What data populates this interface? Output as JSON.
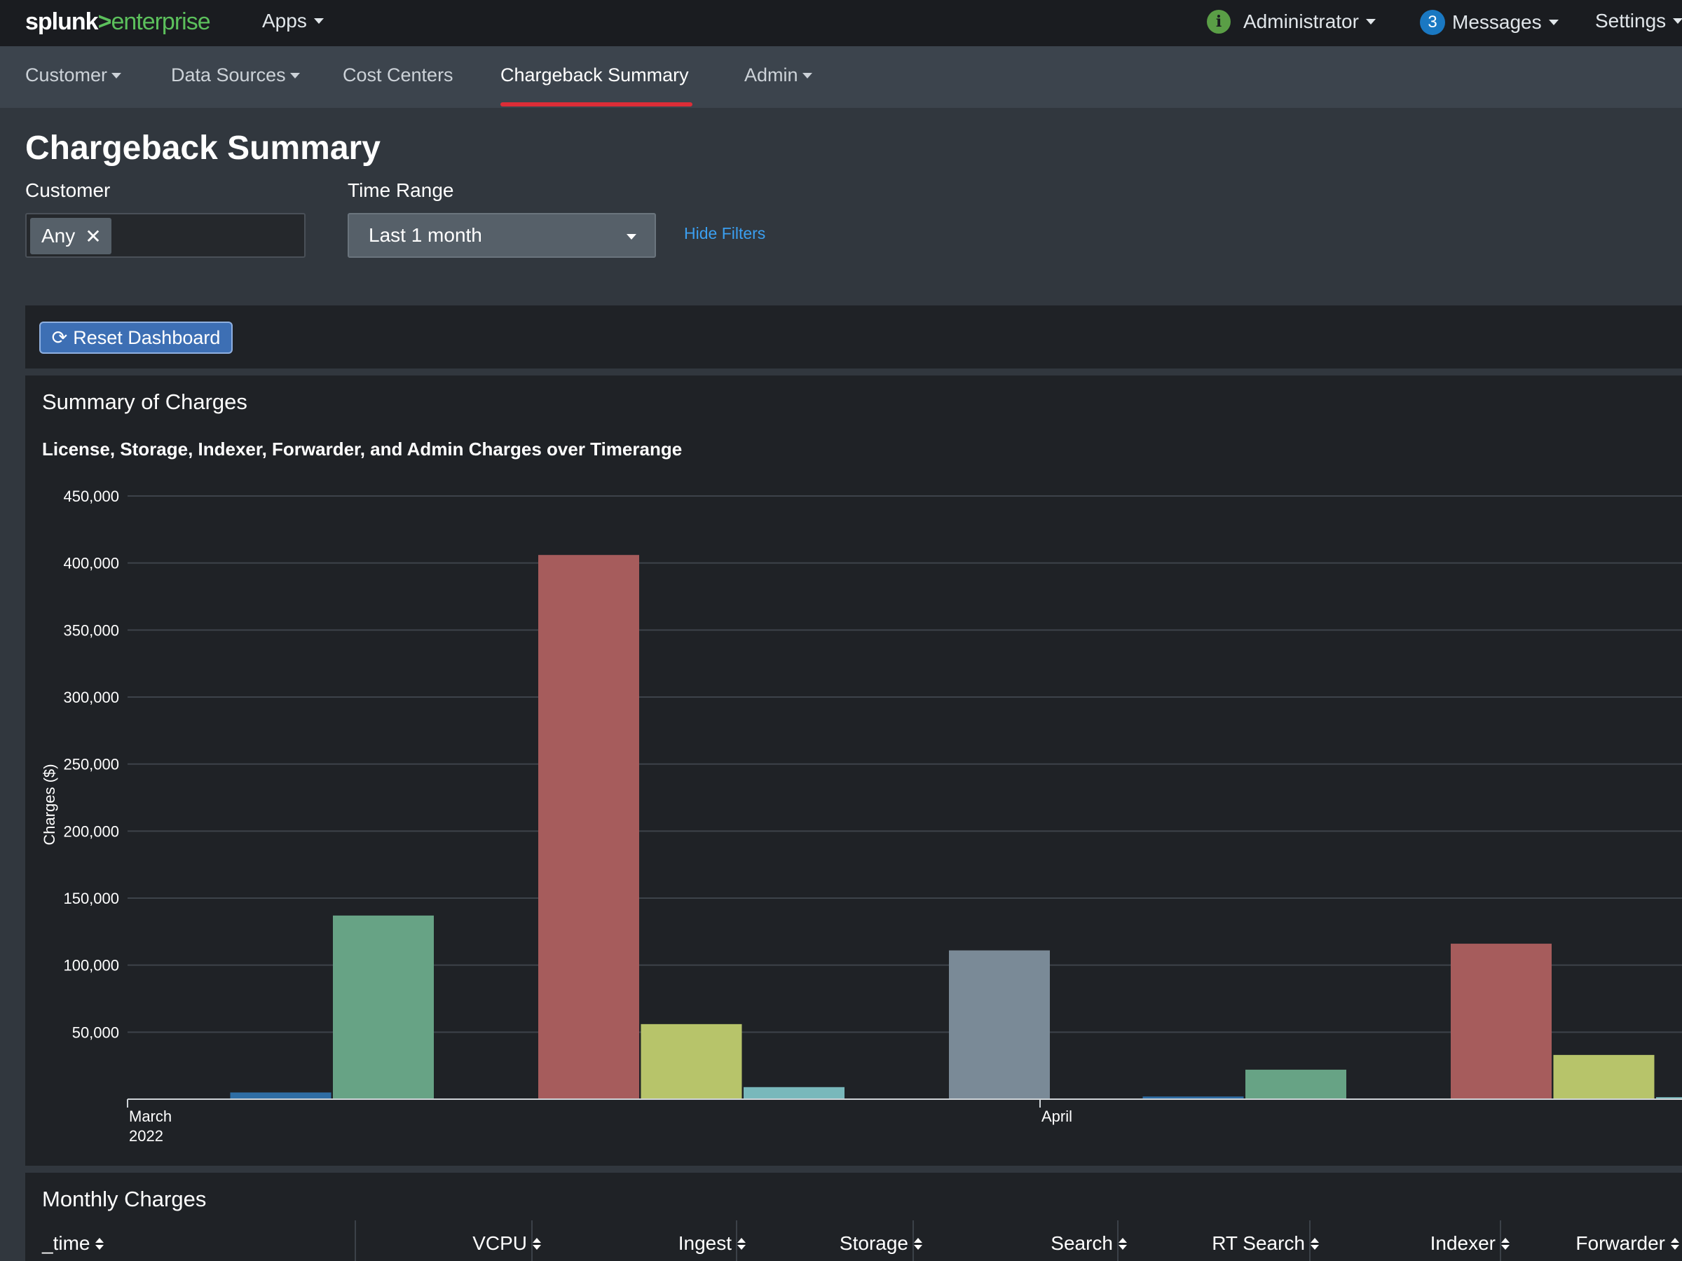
{
  "topbar": {
    "logo_splunk": "splunk",
    "logo_gt": ">",
    "logo_enterprise": "enterprise",
    "apps": "Apps",
    "user": "Administrator",
    "messages_count": "3",
    "messages": "Messages",
    "settings": "Settings"
  },
  "nav": {
    "items": [
      {
        "label": "Customer",
        "dropdown": true
      },
      {
        "label": "Data Sources",
        "dropdown": true
      },
      {
        "label": "Cost Centers",
        "dropdown": false
      },
      {
        "label": "Chargeback Summary",
        "dropdown": false,
        "active": true
      },
      {
        "label": "Admin",
        "dropdown": true
      }
    ]
  },
  "page": {
    "title": "Chargeback Summary"
  },
  "filters": {
    "customer_label": "Customer",
    "customer_chip": "Any",
    "time_label": "Time Range",
    "time_value": "Last 1 month",
    "hide_filters": "Hide Filters"
  },
  "reset": {
    "label": "Reset Dashboard"
  },
  "summary_panel": {
    "title": "Summary of Charges",
    "chart_title": "License, Storage, Indexer, Forwarder, and Admin Charges over Timerange"
  },
  "chart_data": {
    "type": "bar",
    "title": "License, Storage, Indexer, Forwarder, and Admin Charges over Timerange",
    "ylabel": "Charges ($)",
    "ylim": [
      0,
      450000
    ],
    "yticks": [
      "50,000",
      "100,000",
      "150,000",
      "200,000",
      "250,000",
      "300,000",
      "350,000",
      "400,000",
      "450,000"
    ],
    "ytick_values": [
      50000,
      100000,
      150000,
      200000,
      250000,
      300000,
      350000,
      400000,
      450000
    ],
    "x_tick_labels": [
      {
        "label": "March",
        "sublabel": "2022"
      },
      {
        "label": "April",
        "sublabel": ""
      }
    ],
    "groups": [
      {
        "period": "March 2022",
        "bars": [
          {
            "value": 0,
            "color": "#1e93c6"
          },
          {
            "value": 5000,
            "color": "#2e6da4"
          },
          {
            "value": 137000,
            "color": "#67a385"
          },
          {
            "value": 0,
            "color": "#d6563c"
          },
          {
            "value": 406000,
            "color": "#a65c5c"
          },
          {
            "value": 56000,
            "color": "#b7c46a"
          },
          {
            "value": 9000,
            "color": "#79b8bb"
          },
          {
            "value": 0,
            "color": "#9a6ec0"
          },
          {
            "value": 111000,
            "color": "#7a8a97"
          }
        ]
      },
      {
        "period": "April",
        "bars": [
          {
            "value": 0,
            "color": "#1e93c6"
          },
          {
            "value": 2000,
            "color": "#2e6da4"
          },
          {
            "value": 22000,
            "color": "#67a385"
          },
          {
            "value": 0,
            "color": "#d6563c"
          },
          {
            "value": 116000,
            "color": "#a65c5c"
          },
          {
            "value": 33000,
            "color": "#b7c46a"
          },
          {
            "value": 1500,
            "color": "#79b8bb"
          }
        ]
      }
    ],
    "grid": true,
    "colors": {
      "grid": "#3d434a",
      "axis": "#cfd4d8"
    }
  },
  "monthly_panel": {
    "title": "Monthly Charges",
    "columns": [
      "_time",
      "VCPU",
      "Ingest",
      "Storage",
      "Search",
      "RT Search",
      "Indexer",
      "Forwarder"
    ]
  }
}
